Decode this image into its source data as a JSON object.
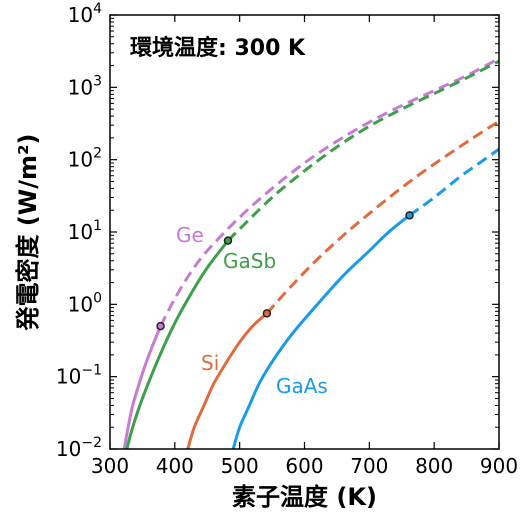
{
  "chart_data": {
    "type": "line",
    "annotation": "環境温度: 300 K",
    "xlabel": "素子温度 (K)",
    "ylabel": "発電密度 (W/m²)",
    "xlim": [
      300,
      900
    ],
    "ylim": [
      0.01,
      10000
    ],
    "y_scale": "log",
    "x_ticks": [
      300,
      400,
      500,
      600,
      700,
      800,
      900
    ],
    "y_ticks": [
      {
        "base": "10",
        "exp": "−2"
      },
      {
        "base": "10",
        "exp": "−1"
      },
      {
        "base": "10",
        "exp": "0"
      },
      {
        "base": "10",
        "exp": "1"
      },
      {
        "base": "10",
        "exp": "2"
      },
      {
        "base": "10",
        "exp": "3"
      },
      {
        "base": "10",
        "exp": "4"
      }
    ],
    "series": [
      {
        "name": "Ge",
        "color": "#c77cd3",
        "x": [
          322,
          328,
          335,
          345,
          355,
          365,
          378,
          400,
          425,
          450,
          500,
          550,
          600,
          650,
          700,
          750,
          800,
          850,
          900
        ],
        "y": [
          0.01,
          0.02,
          0.04,
          0.08,
          0.15,
          0.26,
          0.5,
          1.2,
          2.8,
          5.5,
          16,
          40,
          90,
          180,
          330,
          560,
          900,
          1450,
          2500
        ],
        "solid_until_x": 378,
        "marker": {
          "x": 378,
          "y": 0.5
        }
      },
      {
        "name": "GaSb",
        "color": "#3e9f4a",
        "x": [
          326,
          335,
          350,
          375,
          400,
          425,
          450,
          482,
          500,
          550,
          600,
          650,
          700,
          750,
          800,
          850,
          900
        ],
        "y": [
          0.01,
          0.02,
          0.05,
          0.18,
          0.55,
          1.4,
          3.2,
          7.6,
          11,
          30,
          70,
          150,
          290,
          500,
          820,
          1350,
          2300
        ],
        "solid_until_x": 482,
        "marker": {
          "x": 482,
          "y": 7.6
        }
      },
      {
        "name": "Si",
        "color": "#e06b3f",
        "x": [
          420,
          430,
          445,
          460,
          480,
          500,
          520,
          542,
          580,
          620,
          660,
          700,
          740,
          780,
          820,
          860,
          900
        ],
        "y": [
          0.01,
          0.02,
          0.04,
          0.08,
          0.16,
          0.3,
          0.5,
          0.75,
          1.8,
          4.2,
          9,
          18,
          35,
          65,
          115,
          200,
          340
        ],
        "solid_until_x": 542,
        "marker": {
          "x": 542,
          "y": 0.75
        }
      },
      {
        "name": "GaAs",
        "color": "#1a9be6",
        "x": [
          490,
          500,
          515,
          530,
          550,
          580,
          620,
          660,
          700,
          730,
          762,
          800,
          840,
          870,
          900
        ],
        "y": [
          0.01,
          0.02,
          0.04,
          0.08,
          0.16,
          0.38,
          1.0,
          2.5,
          5.5,
          10,
          17,
          30,
          58,
          90,
          140
        ],
        "solid_until_x": 762,
        "marker": {
          "x": 762,
          "y": 17
        }
      }
    ]
  }
}
